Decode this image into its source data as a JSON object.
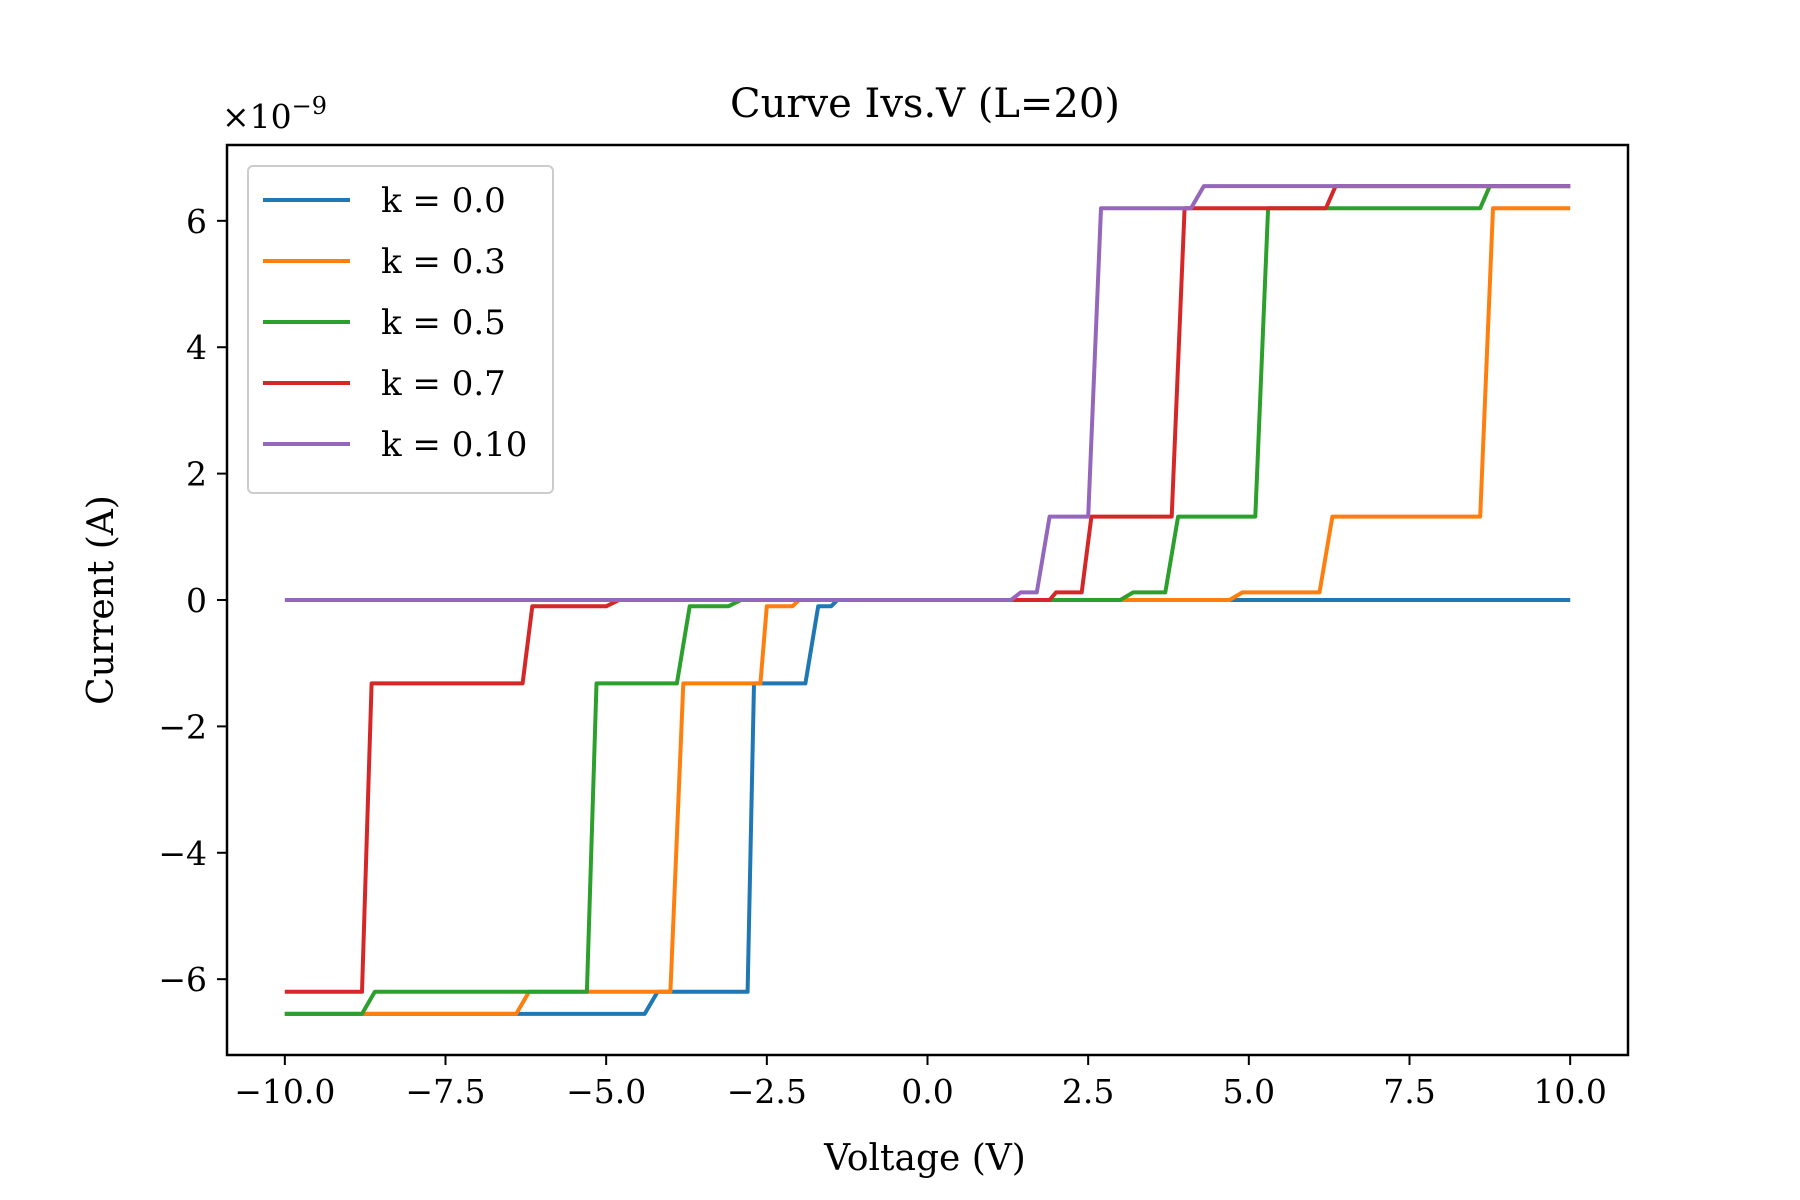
{
  "chart_data": {
    "type": "line",
    "title": "Curve Ivs.V (L=20)",
    "xlabel": "Voltage (V)",
    "ylabel": "Current (A)",
    "y_scale_label": "×10",
    "y_scale_exponent": "−9",
    "xlim": [
      -10.9,
      10.9
    ],
    "ylim": [
      -7.2,
      7.2
    ],
    "xticks": [
      -10,
      -7.5,
      -5,
      -2.5,
      0,
      2.5,
      5,
      7.5,
      10
    ],
    "xtick_labels": [
      "−10.0",
      "−7.5",
      "−5.0",
      "−2.5",
      "0.0",
      "2.5",
      "5.0",
      "7.5",
      "10.0"
    ],
    "yticks": [
      -6,
      -4,
      -2,
      0,
      2,
      4,
      6
    ],
    "ytick_labels": [
      "−6",
      "−4",
      "−2",
      "0",
      "2",
      "4",
      "6"
    ],
    "grid": false,
    "legend_position": "top-left",
    "series": [
      {
        "name": "k = 0.0",
        "color": "#1f77b4",
        "x": [
          -10,
          -4.4,
          -4.2,
          -2.8,
          -2.7,
          -2.1,
          -1.9,
          -1.7,
          -1.5,
          -1.4,
          10
        ],
        "y": [
          -6.55,
          -6.55,
          -6.2,
          -6.2,
          -1.32,
          -1.32,
          -1.32,
          -0.1,
          -0.1,
          0,
          0
        ]
      },
      {
        "name": "k = 0.3",
        "color": "#ff7f0e",
        "x": [
          -10,
          -6.4,
          -6.2,
          -4,
          -3.8,
          -2.7,
          -2.6,
          -2.5,
          -2.1,
          -2.0,
          4.7,
          4.9,
          6.1,
          6.3,
          8.6,
          8.8,
          10
        ],
        "y": [
          -6.55,
          -6.55,
          -6.2,
          -6.2,
          -1.32,
          -1.32,
          -1.32,
          -0.1,
          -0.1,
          0,
          0,
          0.12,
          0.12,
          1.32,
          1.32,
          6.2,
          6.2
        ]
      },
      {
        "name": "k = 0.5",
        "color": "#2ca02c",
        "x": [
          -10,
          -8.8,
          -8.6,
          -5.3,
          -5.15,
          -3.9,
          -3.7,
          -3.1,
          -2.9,
          3.0,
          3.2,
          3.7,
          3.9,
          5.1,
          5.3,
          8.6,
          8.75,
          10
        ],
        "y": [
          -6.55,
          -6.55,
          -6.2,
          -6.2,
          -1.32,
          -1.32,
          -0.1,
          -0.1,
          0,
          0,
          0.12,
          0.12,
          1.32,
          1.32,
          6.2,
          6.2,
          6.55,
          6.55
        ]
      },
      {
        "name": "k = 0.7",
        "color": "#d62728",
        "x": [
          -10,
          -8.8,
          -8.65,
          -6.3,
          -6.15,
          -5.0,
          -4.8,
          1.3,
          1.9,
          2.0,
          2.4,
          2.55,
          3.8,
          4.0,
          6.2,
          6.35,
          10
        ],
        "y": [
          -6.2,
          -6.2,
          -1.32,
          -1.32,
          -0.1,
          -0.1,
          0,
          0,
          0,
          0.12,
          0.12,
          1.32,
          1.32,
          6.2,
          6.2,
          6.55,
          6.55
        ]
      },
      {
        "name": "k = 0.10",
        "color": "#9467bd",
        "x": [
          -10,
          1.3,
          1.45,
          1.7,
          1.9,
          2.5,
          2.7,
          4.1,
          4.3,
          10
        ],
        "y": [
          0,
          0,
          0.12,
          0.12,
          1.32,
          1.32,
          6.2,
          6.2,
          6.55,
          6.55
        ]
      }
    ]
  }
}
